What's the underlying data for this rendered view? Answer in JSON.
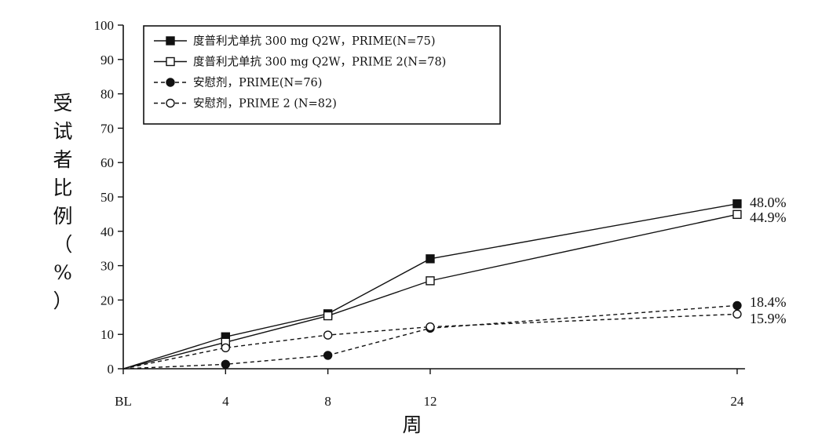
{
  "chart_data": {
    "type": "line",
    "categories": [
      "BL",
      "4",
      "8",
      "12",
      "24"
    ],
    "x": [
      0,
      4,
      8,
      12,
      24
    ],
    "xlabel": "周",
    "ylabel": "受试者比例（%）",
    "ylim": [
      0,
      100
    ],
    "yticks": [
      0,
      10,
      20,
      30,
      40,
      50,
      60,
      70,
      80,
      90,
      100
    ],
    "grid": false,
    "legend_position": "top-left",
    "series": [
      {
        "name": "度普利尤单抗 300 mg Q2W，PRIME(N=75)",
        "values": [
          0,
          9.3,
          16.0,
          32.0,
          48.0
        ],
        "line_style": "solid",
        "marker": "filled-square",
        "end_label": "48.0%"
      },
      {
        "name": "度普利尤单抗 300 mg Q2W，PRIME 2(N=78)",
        "values": [
          0,
          7.7,
          15.4,
          25.6,
          44.9
        ],
        "line_style": "solid",
        "marker": "open-square",
        "end_label": "44.9%"
      },
      {
        "name": "安慰剂，PRIME(N=76)",
        "values": [
          0,
          1.3,
          3.9,
          11.8,
          18.4
        ],
        "line_style": "dashed",
        "marker": "filled-circle",
        "end_label": "18.4%"
      },
      {
        "name": "安慰剂，PRIME 2 (N=82)",
        "values": [
          0,
          6.1,
          9.8,
          12.2,
          15.9
        ],
        "line_style": "dashed",
        "marker": "open-circle",
        "end_label": "15.9%"
      }
    ]
  },
  "colors": {
    "line": "#111111",
    "background": "#ffffff"
  }
}
